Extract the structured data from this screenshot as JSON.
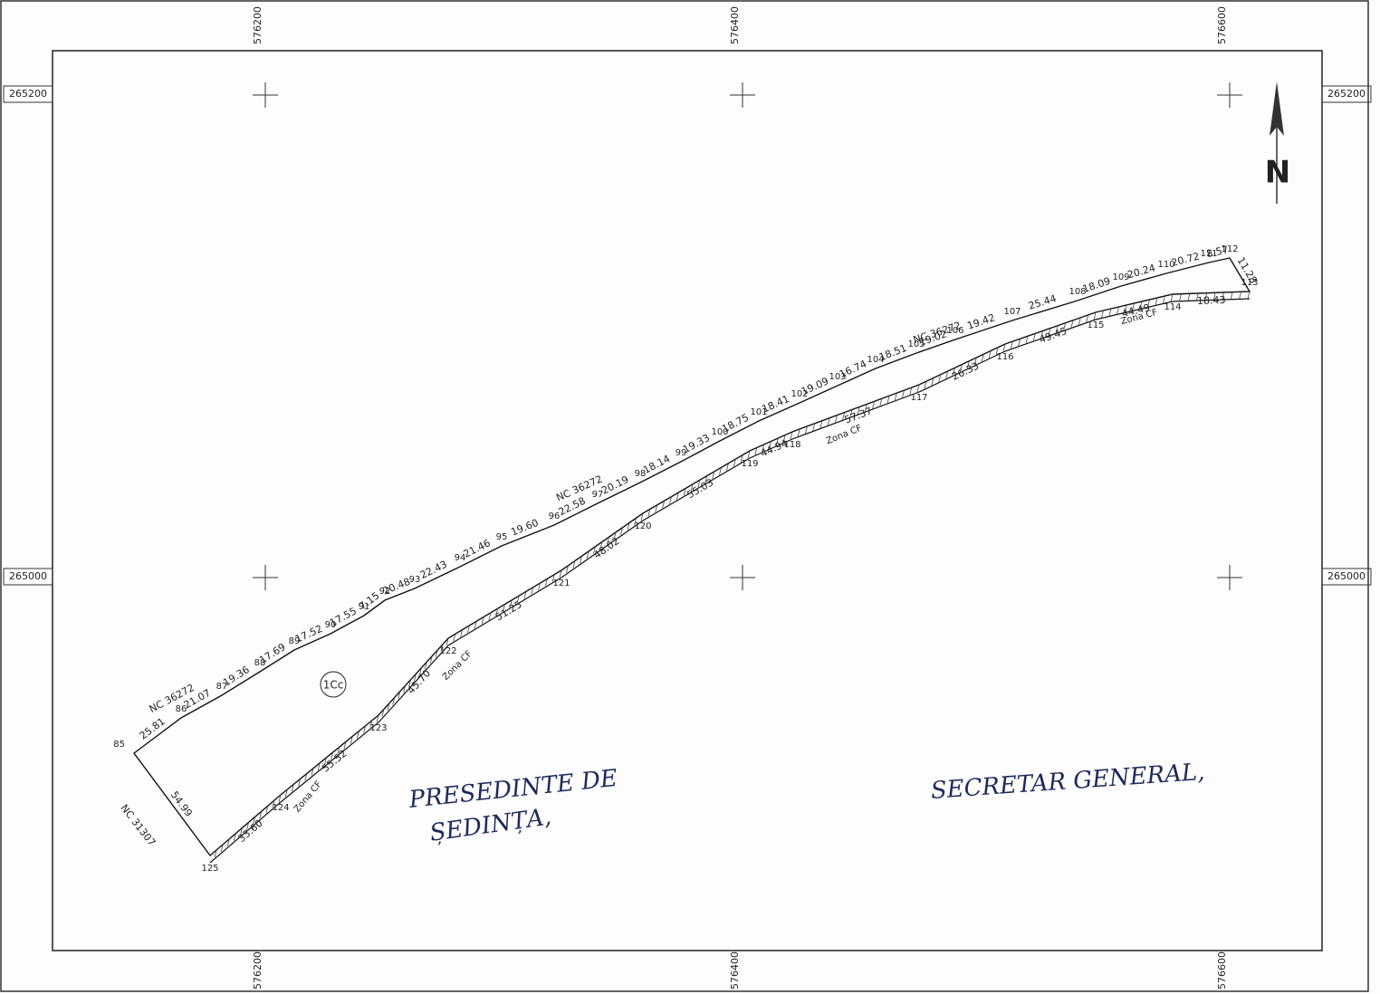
{
  "grid": {
    "x_labels": [
      "576200",
      "576400",
      "576600"
    ],
    "y_labels": [
      "265200",
      "265000"
    ]
  },
  "north": "N",
  "parcel": "1Cc",
  "points": [
    "85",
    "86",
    "87",
    "88",
    "89",
    "90",
    "91",
    "92",
    "93",
    "94",
    "95",
    "96",
    "97",
    "98",
    "99",
    "100",
    "101",
    "102",
    "103",
    "104",
    "105",
    "106",
    "107",
    "108",
    "109",
    "110",
    "111",
    "112",
    "113",
    "114",
    "115",
    "116",
    "117",
    "118",
    "119",
    "120",
    "121",
    "122",
    "123",
    "124",
    "125"
  ],
  "distances": [
    "25.81",
    "21.07",
    "19.36",
    "17.69",
    "17.52",
    "17.55",
    "7.15",
    "20.48",
    "22.43",
    "21.46",
    "19.60",
    "22.58",
    "20.19",
    "18.14",
    "19.33",
    "18.75",
    "18.41",
    "19.09",
    "16.74",
    "18.51",
    "19.02",
    "19.42",
    "25.44",
    "18.09",
    "20.24",
    "20.72",
    "8.57",
    "11.28",
    "18.43",
    "44.49",
    "49.45",
    "26.33",
    "57.37",
    "44.94",
    "55.03",
    "48.02",
    "51.25",
    "45.70",
    "55.52",
    "33.60",
    "54.99"
  ],
  "neighbors": [
    "NC 36272",
    "NC 36272",
    "NC 36272",
    "NC 31307"
  ],
  "zone_labels": [
    "Zona CF",
    "Zona CF",
    "Zona CF",
    "Zona CF"
  ],
  "signatures": [
    "PRESEDINTE DE",
    "ȘEDINȚA,",
    "SECRETAR GENERAL,"
  ]
}
